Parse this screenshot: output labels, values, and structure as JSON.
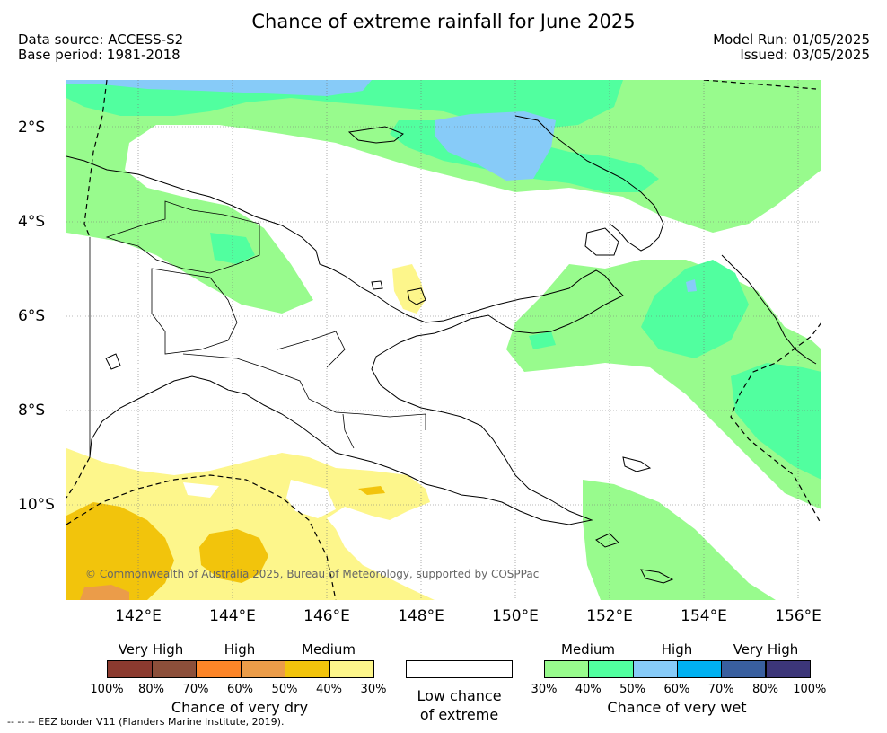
{
  "title": "Chance of extreme rainfall for June 2025",
  "header": {
    "data_source": "Data source: ACCESS-S2",
    "base_period": "Base period: 1981-2018",
    "model_run": "Model Run: 01/05/2025",
    "issued": "Issued: 03/05/2025"
  },
  "map": {
    "lat_labels": [
      "2°S",
      "4°S",
      "6°S",
      "8°S",
      "10°S"
    ],
    "lon_labels": [
      "142°E",
      "144°E",
      "146°E",
      "148°E",
      "150°E",
      "152°E",
      "154°E",
      "156°E"
    ],
    "copyright": "© Commonwealth of Australia 2025, Bureau of Meteorology, supported by COSPPac"
  },
  "legend": {
    "dry": {
      "categories": [
        "Very High",
        "High",
        "Medium"
      ],
      "colors": [
        "#8b3a2f",
        "#8c4f3a",
        "#fc8528",
        "#eb9c49",
        "#f2c40c",
        "#fdf68b"
      ],
      "percents": [
        "100%",
        "80%",
        "70%",
        "60%",
        "50%",
        "40%",
        "30%"
      ],
      "label": "Chance of very dry"
    },
    "neutral": {
      "label_line1": "Low chance",
      "label_line2": "of extreme",
      "color": "#ffffff"
    },
    "wet": {
      "categories": [
        "Medium",
        "High",
        "Very High"
      ],
      "colors": [
        "#98fb8d",
        "#51ff9f",
        "#87cbf8",
        "#00b1f1",
        "#395f9f",
        "#3c3679"
      ],
      "percents": [
        "30%",
        "40%",
        "50%",
        "60%",
        "70%",
        "80%",
        "100%"
      ],
      "label": "Chance of very wet"
    },
    "eez_note": "--  --  -- EEZ border V11 (Flanders Marine Institute, 2019)."
  }
}
